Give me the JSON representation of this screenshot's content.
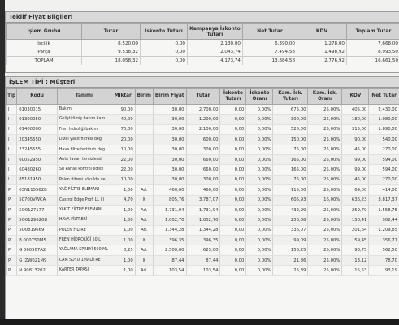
{
  "teklif": {
    "title": "Teklif Fiyat Bilgileri",
    "headers": [
      "İşlem Grubu",
      "Tutar",
      "İskonto Tutarı",
      "Kampanya İskonto Tutarı",
      "Net Tutar",
      "KDV",
      "Toplam Tutar"
    ],
    "rows": [
      [
        "İşçilik",
        "8.520,00",
        "0,00",
        "2.130,00",
        "6.390,00",
        "1.278,00",
        "7.668,00"
      ],
      [
        "Parça",
        "9.538,32",
        "0,00",
        "2.043,74",
        "7.494,58",
        "1.498,92",
        "8.993,50"
      ],
      [
        "TOPLAM",
        "18.058,32",
        "0,00",
        "4.173,74",
        "13.884,58",
        "2.776,92",
        "16.661,50"
      ]
    ]
  },
  "islem": {
    "title": "İŞLEM TİPİ : Müşteri",
    "headers": [
      "Tip",
      "Kodu",
      "Tanımı",
      "Miktar",
      "Birim",
      "Birim Fiyat",
      "Tutar",
      "İskonto Tutarı",
      "İskonto Oranı",
      "Kam. İsk. Tutarı",
      "Kam. İsk. Oranı",
      "KDV",
      "Net Tutar"
    ],
    "rows": [
      [
        "I",
        "01030015",
        "Bakım",
        "90,00",
        "",
        "30,00",
        "2.700,00",
        "0,00",
        "0,00%",
        "675,00",
        "25,00%",
        "405,00",
        "2.430,00"
      ],
      [
        "I",
        "01390050",
        "Geliştirilmiş bakım kam.",
        "40,00",
        "",
        "30,00",
        "1.200,00",
        "0,00",
        "0,00%",
        "300,00",
        "25,00%",
        "180,00",
        "1.080,00"
      ],
      [
        "I",
        "01400000",
        "Fren hidroliği bakımı",
        "70,00",
        "",
        "30,00",
        "2.100,00",
        "0,00",
        "0,00%",
        "525,00",
        "25,00%",
        "315,00",
        "1.890,00"
      ],
      [
        "I",
        "20345550",
        "Dizel yakıt filtresi deg",
        "20,00",
        "",
        "30,00",
        "600,00",
        "0,00",
        "0,00%",
        "150,00",
        "25,00%",
        "90,00",
        "540,00"
      ],
      [
        "I",
        "23245555",
        "Hava filtre tertibatı deg",
        "10,00",
        "",
        "30,00",
        "300,00",
        "0,00",
        "0,00%",
        "75,00",
        "25,00%",
        "45,00",
        "270,00"
      ],
      [
        "I",
        "60052950",
        "Arıtır lavarı temizlendi",
        "22,00",
        "",
        "30,00",
        "660,00",
        "0,00",
        "0,00%",
        "165,00",
        "25,00%",
        "99,00",
        "594,00"
      ],
      [
        "I",
        "60480260",
        "Su kanalı kontrol edildi",
        "22,00",
        "",
        "30,00",
        "660,00",
        "0,00",
        "0,00%",
        "165,00",
        "25,00%",
        "99,00",
        "594,00"
      ],
      [
        "I",
        "85181950",
        "Polen filtresi sökuldu ve",
        "10,00",
        "",
        "30,00",
        "300,00",
        "0,00",
        "0,00%",
        "75,00",
        "25,00%",
        "45,00",
        "270,00"
      ],
      [
        "P",
        "03N115562B",
        "YAĞ FİLTRE ELEMANI",
        "1,00",
        "Ad.",
        "460,00",
        "460,00",
        "0,00",
        "0,00%",
        "115,00",
        "25,00%",
        "69,00",
        "414,00"
      ],
      [
        "P",
        "50700VWCA",
        "Castrol Edge Prof. LL III",
        "4,70",
        "lt",
        "805,76",
        "3.787,07",
        "0,00",
        "0,00%",
        "605,93",
        "16,00%",
        "636,23",
        "3.817,37"
      ],
      [
        "P",
        "5Q0127177",
        "YAKIT FİLTRE ELEMANI",
        "1,00",
        "Ad.",
        "1.731,94",
        "1.731,94",
        "0,00",
        "0,00%",
        "432,99",
        "25,00%",
        "259,79",
        "1.558,75"
      ],
      [
        "P",
        "5Q0129620B",
        "HAVA FİLTRESİ",
        "1,00",
        "Ad.",
        "1.002,70",
        "1.002,70",
        "0,00",
        "0,00%",
        "250,68",
        "25,00%",
        "150,41",
        "902,44"
      ],
      [
        "P",
        "5Q0819669",
        "POLEN FİLTRE",
        "1,00",
        "Ad.",
        "1.344,28",
        "1.344,28",
        "0,00",
        "0,00%",
        "336,07",
        "25,00%",
        "201,64",
        "1.209,85"
      ],
      [
        "P",
        "B 000750M5",
        "FREN HİDROLİĞİ 50 L",
        "1,00",
        "lt",
        "396,35",
        "396,35",
        "0,00",
        "0,00%",
        "99,09",
        "25,00%",
        "59,45",
        "356,71"
      ],
      [
        "P",
        "G 060567A2",
        "YAĞLAMA SPREYİ 500 ML",
        "0,25",
        "Ad.",
        "2.500,00",
        "625,00",
        "0,00",
        "0,00%",
        "156,25",
        "25,00%",
        "93,75",
        "562,50"
      ],
      [
        "P",
        "G JZW021M9",
        "CAM SUYU 199 LİTRE",
        "1,00",
        "lt",
        "87,44",
        "87,44",
        "0,00",
        "0,00%",
        "21,86",
        "25,00%",
        "13,12",
        "78,70"
      ],
      [
        "P",
        "N 90813202",
        "KARTER TAPASI",
        "1,00",
        "Ad.",
        "103,54",
        "103,54",
        "0,00",
        "0,00%",
        "25,89",
        "25,00%",
        "15,53",
        "93,19"
      ]
    ]
  }
}
